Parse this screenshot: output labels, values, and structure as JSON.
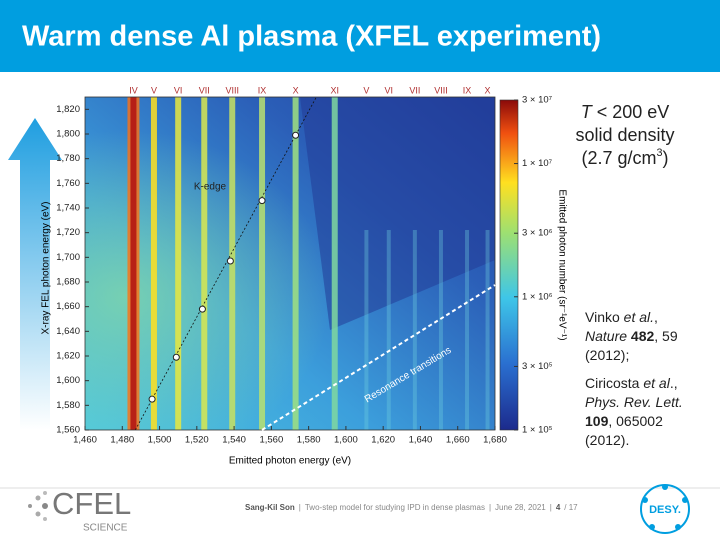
{
  "title": "Warm dense Al plasma (XFEL experiment)",
  "figure": {
    "xlabel": "Emitted photon energy (eV)",
    "ylabel": "X-ray FEL photon energy (eV)",
    "clabel": "Emitted photon number (sr⁻¹eV⁻¹)",
    "xlim": [
      1460,
      1680
    ],
    "ylim": [
      1560,
      1830
    ],
    "clim": [
      100000,
      30000000
    ],
    "xticks": [
      {
        "value": 1460,
        "label": "1,460"
      },
      {
        "value": 1480,
        "label": "1,480"
      },
      {
        "value": 1500,
        "label": "1,500"
      },
      {
        "value": 1520,
        "label": "1,520"
      },
      {
        "value": 1540,
        "label": "1,540"
      },
      {
        "value": 1560,
        "label": "1,560"
      },
      {
        "value": 1580,
        "label": "1,580"
      },
      {
        "value": 1600,
        "label": "1,600"
      },
      {
        "value": 1620,
        "label": "1,620"
      },
      {
        "value": 1640,
        "label": "1,640"
      },
      {
        "value": 1660,
        "label": "1,660"
      },
      {
        "value": 1680,
        "label": "1,680"
      }
    ],
    "yticks": [
      {
        "value": 1560,
        "label": "1,560"
      },
      {
        "value": 1580,
        "label": "1,580"
      },
      {
        "value": 1600,
        "label": "1,600"
      },
      {
        "value": 1620,
        "label": "1,620"
      },
      {
        "value": 1640,
        "label": "1,640"
      },
      {
        "value": 1660,
        "label": "1,660"
      },
      {
        "value": 1680,
        "label": "1,680"
      },
      {
        "value": 1700,
        "label": "1,700"
      },
      {
        "value": 1720,
        "label": "1,720"
      },
      {
        "value": 1740,
        "label": "1,740"
      },
      {
        "value": 1760,
        "label": "1,760"
      },
      {
        "value": 1780,
        "label": "1,780"
      },
      {
        "value": 1800,
        "label": "1,800"
      },
      {
        "value": 1820,
        "label": "1,820"
      }
    ],
    "cticks": [
      {
        "value": 100000,
        "label": "1 × 10⁵"
      },
      {
        "value": 300000,
        "label": "3 × 10⁵"
      },
      {
        "value": 1000000,
        "label": "1 × 10⁶"
      },
      {
        "value": 3000000,
        "label": "3 × 10⁶"
      },
      {
        "value": 10000000,
        "label": "1 × 10⁷"
      },
      {
        "value": 30000000,
        "label": "3 × 10⁷"
      }
    ],
    "lines": [
      {
        "label": "IV",
        "x": 1486
      },
      {
        "label": "V",
        "x": 1497
      },
      {
        "label": "VI",
        "x": 1510
      },
      {
        "label": "VII",
        "x": 1524
      },
      {
        "label": "VIII",
        "x": 1539
      },
      {
        "label": "IX",
        "x": 1555
      },
      {
        "label": "X",
        "x": 1573
      },
      {
        "label": "XI",
        "x": 1594
      },
      {
        "label": "V",
        "x": 1611
      },
      {
        "label": "VI",
        "x": 1623
      },
      {
        "label": "VII",
        "x": 1637
      },
      {
        "label": "VIII",
        "x": 1651
      },
      {
        "label": "IX",
        "x": 1665
      },
      {
        "label": "X",
        "x": 1676
      }
    ],
    "kedge": {
      "label": "K-edge",
      "x": [
        1496,
        1509,
        1523,
        1538,
        1555,
        1573
      ],
      "y": [
        1585,
        1619,
        1658,
        1697,
        1746,
        1799
      ]
    },
    "resonance": "Resonance transitions"
  },
  "info": [
    [
      {
        "t": "T",
        "s": "i"
      },
      {
        "t": " < 200 eV"
      }
    ],
    [
      {
        "t": "solid density"
      }
    ],
    [
      {
        "t": "(2.7 g/cm"
      },
      {
        "t": "3",
        "s": "sup"
      },
      {
        "t": ")"
      }
    ]
  ],
  "refs": [
    [
      {
        "t": "Vinko "
      },
      {
        "t": "et al.",
        "s": "i"
      },
      {
        "t": ","
      }
    ],
    [
      {
        "t": "Nature",
        "s": "i"
      },
      {
        "t": " "
      },
      {
        "t": "482",
        "s": "b"
      },
      {
        "t": ", 59"
      }
    ],
    [
      {
        "t": "(2012);"
      }
    ],
    [
      {
        "t": "Ciricosta "
      },
      {
        "t": "et al",
        "s": "i"
      },
      {
        "t": "., "
      }
    ],
    [
      {
        "t": "Phys. Rev. Lett.",
        "s": "i"
      }
    ],
    [
      {
        "t": "109",
        "s": "b"
      },
      {
        "t": ", 065002"
      }
    ],
    [
      {
        "t": "(2012)."
      }
    ]
  ],
  "footer": [
    "Sang-Kil Son",
    "|",
    "Two-step model for studying IPD in dense plasmas",
    "|",
    "June 28, 2021",
    "|",
    "4",
    "/ 17"
  ],
  "logos": {
    "cfel": "CFEL",
    "science": "SCIENCE",
    "desy": "DESY."
  }
}
